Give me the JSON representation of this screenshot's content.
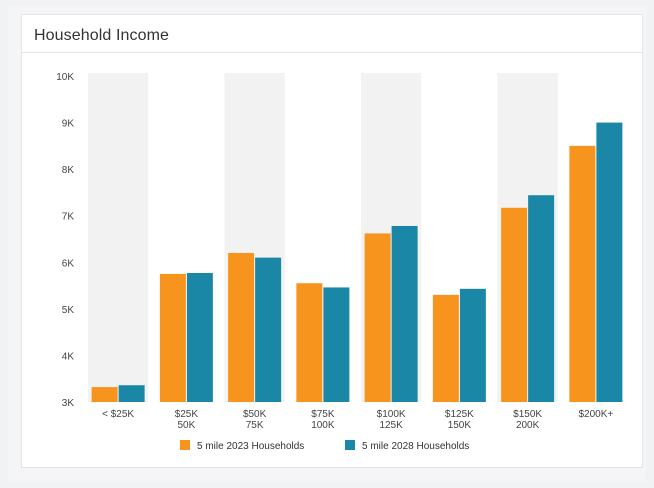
{
  "card": {
    "title": "Household Income"
  },
  "colors": {
    "series_2023": "#f7941d",
    "series_2028": "#1b87a6",
    "band": "#f2f2f3"
  },
  "chart_data": {
    "type": "bar",
    "title": "Household Income",
    "xlabel": "",
    "ylabel": "",
    "ylim": [
      3000,
      10000
    ],
    "yticks": [
      {
        "value": 10000,
        "label": "10K"
      },
      {
        "value": 9000,
        "label": "9K"
      },
      {
        "value": 8000,
        "label": "8K"
      },
      {
        "value": 7000,
        "label": "7K"
      },
      {
        "value": 6000,
        "label": "6K"
      },
      {
        "value": 5000,
        "label": "5K"
      },
      {
        "value": 4000,
        "label": "4K"
      },
      {
        "value": 3000,
        "label": "3K"
      }
    ],
    "categories": [
      [
        "< $25K"
      ],
      [
        "$25K",
        "50K"
      ],
      [
        "$50K",
        "75K"
      ],
      [
        "$75K",
        "100K"
      ],
      [
        "$100K",
        "125K"
      ],
      [
        "$125K",
        "150K"
      ],
      [
        "$150K",
        "200K"
      ],
      [
        "$200K+"
      ]
    ],
    "series": [
      {
        "name": "5 mile 2023 Households",
        "values": [
          3320,
          5750,
          6200,
          5550,
          6620,
          5300,
          7170,
          8500
        ]
      },
      {
        "name": "5 mile 2028 Households",
        "values": [
          3360,
          5770,
          6100,
          5460,
          6780,
          5430,
          7440,
          9000
        ]
      }
    ],
    "grid": false,
    "alternating_bands": true,
    "legend": "bottom-center"
  }
}
